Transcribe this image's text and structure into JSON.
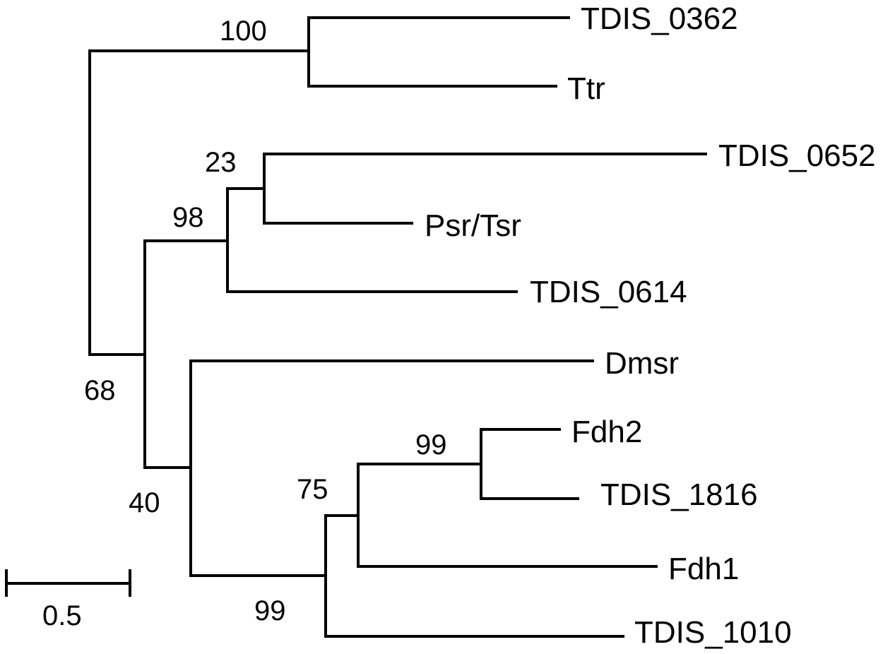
{
  "tree": {
    "leaves": [
      "TDIS_0362",
      "Ttr",
      "TDIS_0652",
      "Psr/Tsr",
      "TDIS_0614",
      "Dmsr",
      "Fdh2",
      "TDIS_1816",
      "Fdh1",
      "TDIS_1010"
    ],
    "support_values": [
      "100",
      "23",
      "98",
      "68",
      "40",
      "99",
      "75",
      "99"
    ]
  },
  "scale_bar": {
    "label": "0.5"
  }
}
